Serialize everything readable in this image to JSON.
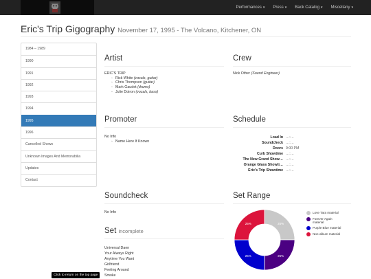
{
  "nav": {
    "menu": [
      {
        "label": "Performances"
      },
      {
        "label": "Press"
      },
      {
        "label": "Back Catalog"
      },
      {
        "label": "Miscellany"
      }
    ]
  },
  "page": {
    "title": "Eric's Trip Gigography",
    "subtitle": "November 17, 1995 - The Volcano, Kitchener, ON"
  },
  "sidebar": {
    "items": [
      {
        "label": "1984 – 1989"
      },
      {
        "label": "1990"
      },
      {
        "label": "1991"
      },
      {
        "label": "1992"
      },
      {
        "label": "1993"
      },
      {
        "label": "1994"
      },
      {
        "label": "1995",
        "active": true
      },
      {
        "label": "1996"
      },
      {
        "label": "Cancelled Shows"
      },
      {
        "label": "Unknown Images And Memorabilia"
      },
      {
        "label": "Updates"
      },
      {
        "label": "Contact"
      }
    ]
  },
  "artist": {
    "heading": "Artist",
    "band": "ERIC'S TRIP",
    "members": [
      {
        "name": "Rick White",
        "role": "(vocals, guitar)"
      },
      {
        "name": "Chris Thompson",
        "role": "(guitar)"
      },
      {
        "name": "Mark Gaudet",
        "role": "(drums)"
      },
      {
        "name": "Julie Doiron",
        "role": "(vocals, bass)"
      }
    ]
  },
  "crew": {
    "heading": "Crew",
    "members": [
      {
        "name": "Nick Other",
        "role": "(Sound Engineer)"
      }
    ]
  },
  "promoter": {
    "heading": "Promoter",
    "info": "No Info",
    "items": [
      "Name Here If Known"
    ]
  },
  "schedule": {
    "heading": "Schedule",
    "rows": [
      {
        "label": "Load In",
        "value": "…:…"
      },
      {
        "label": "Soundcheck",
        "value": "…:…"
      },
      {
        "label": "Doors",
        "value": "9:00 PM"
      },
      {
        "label": "Curb Showtime",
        "value": "…:…"
      },
      {
        "label": "The New Grand Show…",
        "value": "…:…"
      },
      {
        "label": "Orange Glass Showti…",
        "value": "…:…"
      },
      {
        "label": "Eric's Trip Showtime",
        "value": "…:…"
      }
    ]
  },
  "soundcheck": {
    "heading": "Soundcheck",
    "info": "No Info"
  },
  "setrange": {
    "heading": "Set Range",
    "colors": {
      "love_tara": "#c8c8c8",
      "forever_again": "#4b0082",
      "purple_blue": "#0000cd",
      "non_album": "#dc143c"
    }
  },
  "setlist": {
    "heading": "Set",
    "status": "incomplete",
    "songs": [
      "Universal Daen",
      "Your Always Right",
      "Anytime You Want",
      "Girlfriend",
      "Feeling Around",
      "Smoke"
    ]
  },
  "tooltip": "Click to return on the top page",
  "chart_data": {
    "type": "pie",
    "title": "",
    "categories": [
      "Love Tara material",
      "Forever Again material",
      "Purple Blue material",
      "Non-album material"
    ],
    "values": [
      25,
      25,
      25,
      25
    ],
    "labels": [
      "25%",
      "25%",
      "25%",
      "25%"
    ],
    "colors": [
      "#c8c8c8",
      "#4b0082",
      "#0000cd",
      "#dc143c"
    ],
    "legend": "right"
  }
}
